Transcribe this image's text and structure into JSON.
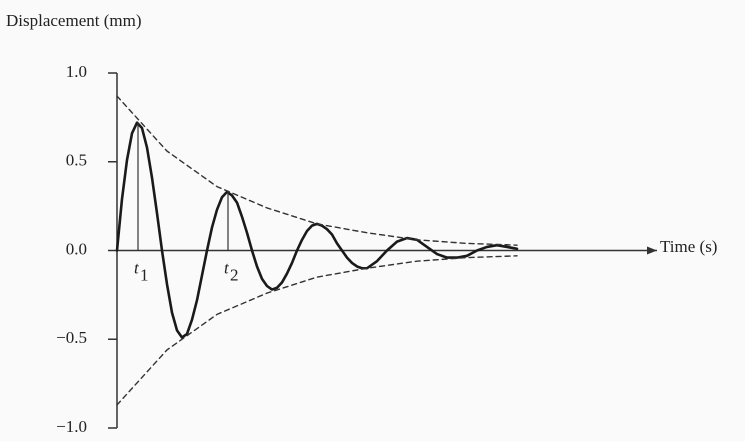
{
  "chart_data": {
    "type": "line",
    "y_axis_label": "Displacement (mm)",
    "x_axis_label": "Time (s)",
    "xlim": [
      0,
      5.4
    ],
    "ylim": [
      -1,
      1
    ],
    "yticks": [
      {
        "value": 1,
        "label": "1.0"
      },
      {
        "value": 0.5,
        "label": "0.5"
      },
      {
        "value": 0,
        "label": "0.0"
      },
      {
        "value": -0.5,
        "label": "−0.5"
      },
      {
        "value": -1,
        "label": "−1.0"
      }
    ],
    "series": [
      {
        "color": "#1a1a1a",
        "style": "solid",
        "x": [
          0,
          0.05,
          0.1,
          0.15,
          0.2,
          0.25,
          0.3,
          0.35,
          0.4,
          0.45,
          0.5,
          0.55,
          0.6,
          0.65,
          0.7,
          0.75,
          0.8,
          0.85,
          0.9,
          0.95,
          1.0,
          1.05,
          1.1,
          1.15,
          1.2,
          1.25,
          1.3,
          1.35,
          1.4,
          1.45,
          1.5,
          1.55,
          1.6,
          1.65,
          1.7,
          1.75,
          1.8,
          1.85,
          1.9,
          1.95,
          2.0,
          2.05,
          2.1,
          2.15,
          2.2,
          2.25,
          2.3,
          2.35,
          2.4,
          2.45,
          2.5,
          2.6,
          2.7,
          2.8,
          2.9,
          3.0,
          3.1,
          3.2,
          3.3,
          3.4,
          3.5,
          3.6,
          3.7,
          3.8,
          3.9,
          4.0
        ],
        "values": [
          0,
          0.29,
          0.51,
          0.66,
          0.72,
          0.69,
          0.58,
          0.41,
          0.21,
          0,
          -0.19,
          -0.35,
          -0.45,
          -0.49,
          -0.47,
          -0.39,
          -0.28,
          -0.14,
          0,
          0.13,
          0.23,
          0.3,
          0.33,
          0.31,
          0.27,
          0.19,
          0.1,
          0,
          -0.09,
          -0.16,
          -0.2,
          -0.22,
          -0.21,
          -0.18,
          -0.13,
          -0.07,
          0,
          0.06,
          0.11,
          0.14,
          0.15,
          0.14,
          0.12,
          0.09,
          0.04,
          0,
          -0.04,
          -0.07,
          -0.09,
          -0.1,
          -0.1,
          -0.06,
          0,
          0.05,
          0.07,
          0.06,
          0.02,
          -0.02,
          -0.04,
          -0.04,
          -0.03,
          0,
          0.02,
          0.03,
          0.02,
          0.01
        ]
      },
      {
        "color": "#333333",
        "style": "dashed",
        "x": [
          0,
          0.5,
          1.0,
          1.5,
          2.0,
          2.5,
          3.0,
          3.5,
          4.0
        ],
        "values": [
          0.87,
          0.56,
          0.36,
          0.24,
          0.15,
          0.1,
          0.06,
          0.04,
          0.03
        ]
      },
      {
        "color": "#333333",
        "style": "dashed",
        "x": [
          0,
          0.5,
          1.0,
          1.5,
          2.0,
          2.5,
          3.0,
          3.5,
          4.0
        ],
        "values": [
          -0.87,
          -0.56,
          -0.36,
          -0.24,
          -0.15,
          -0.1,
          -0.06,
          -0.04,
          -0.03
        ]
      }
    ],
    "annotations": [
      {
        "label": "t",
        "subscript": "1",
        "x": 0.21,
        "y": 0.72
      },
      {
        "label": "t",
        "subscript": "2",
        "x": 1.11,
        "y": 0.33
      }
    ]
  }
}
